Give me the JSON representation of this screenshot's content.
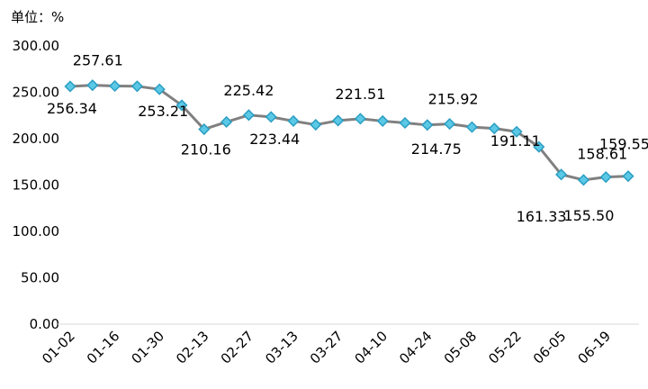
{
  "chart_data": {
    "type": "line",
    "unit_label": "单位：%",
    "y_ticks": [
      "300.00",
      "250.00",
      "200.00",
      "150.00",
      "100.00",
      "50.00",
      "0.00"
    ],
    "ylim": [
      0,
      300
    ],
    "x_tick_labels": [
      "01-02",
      "01-16",
      "01-30",
      "02-13",
      "02-27",
      "03-13",
      "03-27",
      "04-10",
      "04-24",
      "05-08",
      "05-22",
      "06-05",
      "06-19"
    ],
    "x": [
      "01-02",
      "01-09",
      "01-16",
      "01-23",
      "01-30",
      "02-06",
      "02-13",
      "02-20",
      "02-27",
      "03-06",
      "03-13",
      "03-20",
      "03-27",
      "04-03",
      "04-10",
      "04-17",
      "04-24",
      "05-01",
      "05-08",
      "05-15",
      "05-22",
      "05-29",
      "06-05",
      "06-12",
      "06-19",
      "06-26"
    ],
    "series": [
      {
        "values": [
          256.34,
          257.61,
          256.8,
          256.5,
          253.21,
          236.0,
          210.16,
          218.0,
          225.42,
          223.44,
          219.0,
          215.0,
          219.5,
          221.51,
          219.0,
          217.0,
          214.75,
          215.92,
          212.5,
          211.0,
          207.5,
          191.11,
          161.33,
          155.5,
          158.61,
          159.55
        ],
        "labels": [
          "256.34",
          "257.61",
          "",
          "",
          "253.21",
          "",
          "210.16",
          "",
          "225.42",
          "223.44",
          "",
          "",
          "",
          "221.51",
          "",
          "",
          "214.75",
          "215.92",
          "",
          "",
          "",
          "191.11",
          "161.33",
          "155.50",
          "158.61",
          "159.55"
        ]
      }
    ],
    "colors": {
      "line": "#808080",
      "marker_fill": "#5bc8e6",
      "marker_stroke": "#2b9ec2",
      "axis": "#d9d9d9"
    },
    "grid": false,
    "legend": "none"
  }
}
